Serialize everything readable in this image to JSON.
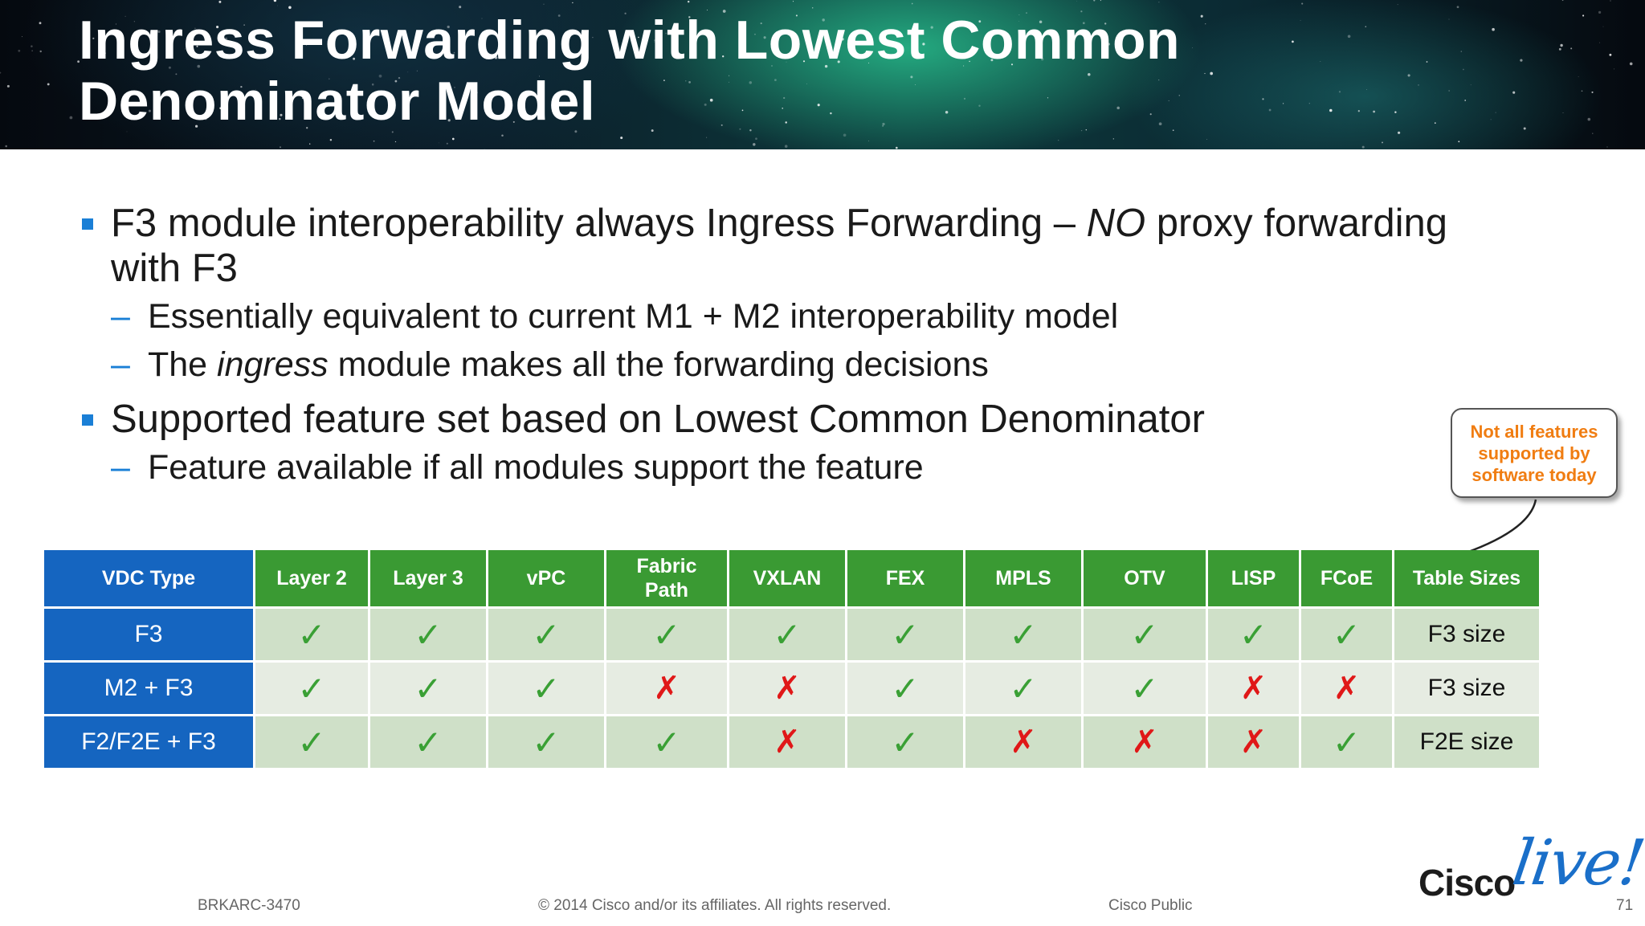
{
  "header": {
    "title_line1": "Ingress Forwarding with Lowest Common",
    "title_line2": "Denominator Model"
  },
  "bullets": {
    "b1": {
      "pre": "F3 module interoperability always Ingress Forwarding – ",
      "emph": "NO",
      "post": " proxy forwarding",
      "line2": "with F3"
    },
    "b1_sub1": "Essentially equivalent to current M1 + M2 interoperability model",
    "b1_sub2": {
      "pre": "The ",
      "emph": "ingress",
      "post": " module makes all the forwarding decisions"
    },
    "b2": "Supported feature set based on Lowest Common Denominator",
    "b2_sub1": "Feature available if all modules support the feature",
    "dash": "–"
  },
  "table": {
    "headers": [
      "VDC Type",
      "Layer 2",
      "Layer 3",
      "vPC",
      "Fabric\nPath",
      "VXLAN",
      "FEX",
      "MPLS",
      "OTV",
      "LISP",
      "FCoE",
      "Table Sizes"
    ],
    "header_fabric_line1": "Fabric",
    "header_fabric_line2": "Path",
    "rows": [
      {
        "type": "F3",
        "cells": [
          "✓",
          "✓",
          "✓",
          "✓",
          "✓",
          "✓",
          "✓",
          "✓",
          "✓",
          "✓"
        ],
        "size": "F3 size"
      },
      {
        "type": "M2 + F3",
        "cells": [
          "✓",
          "✓",
          "✓",
          "✗",
          "✗",
          "✓",
          "✓",
          "✓",
          "✗",
          "✗"
        ],
        "size": "F3 size"
      },
      {
        "type": "F2/F2E + F3",
        "cells": [
          "✓",
          "✓",
          "✓",
          "✓",
          "✗",
          "✓",
          "✗",
          "✗",
          "✗",
          "✓"
        ],
        "size": "F2E size"
      }
    ],
    "colors": {
      "header_green": "#3a9a33",
      "vdc_blue": "#1565c0",
      "check": "#3aa035",
      "cross": "#e01818"
    }
  },
  "callout": {
    "line1": "Not all features",
    "line2": "supported by",
    "line3": "software today"
  },
  "footer": {
    "code": "BRKARC-3470",
    "copyright": "© 2014 Cisco and/or its affiliates. All rights reserved.",
    "classification": "Cisco Public",
    "page": "71"
  },
  "logo": {
    "cisco": "Cisco",
    "live": "live!"
  }
}
